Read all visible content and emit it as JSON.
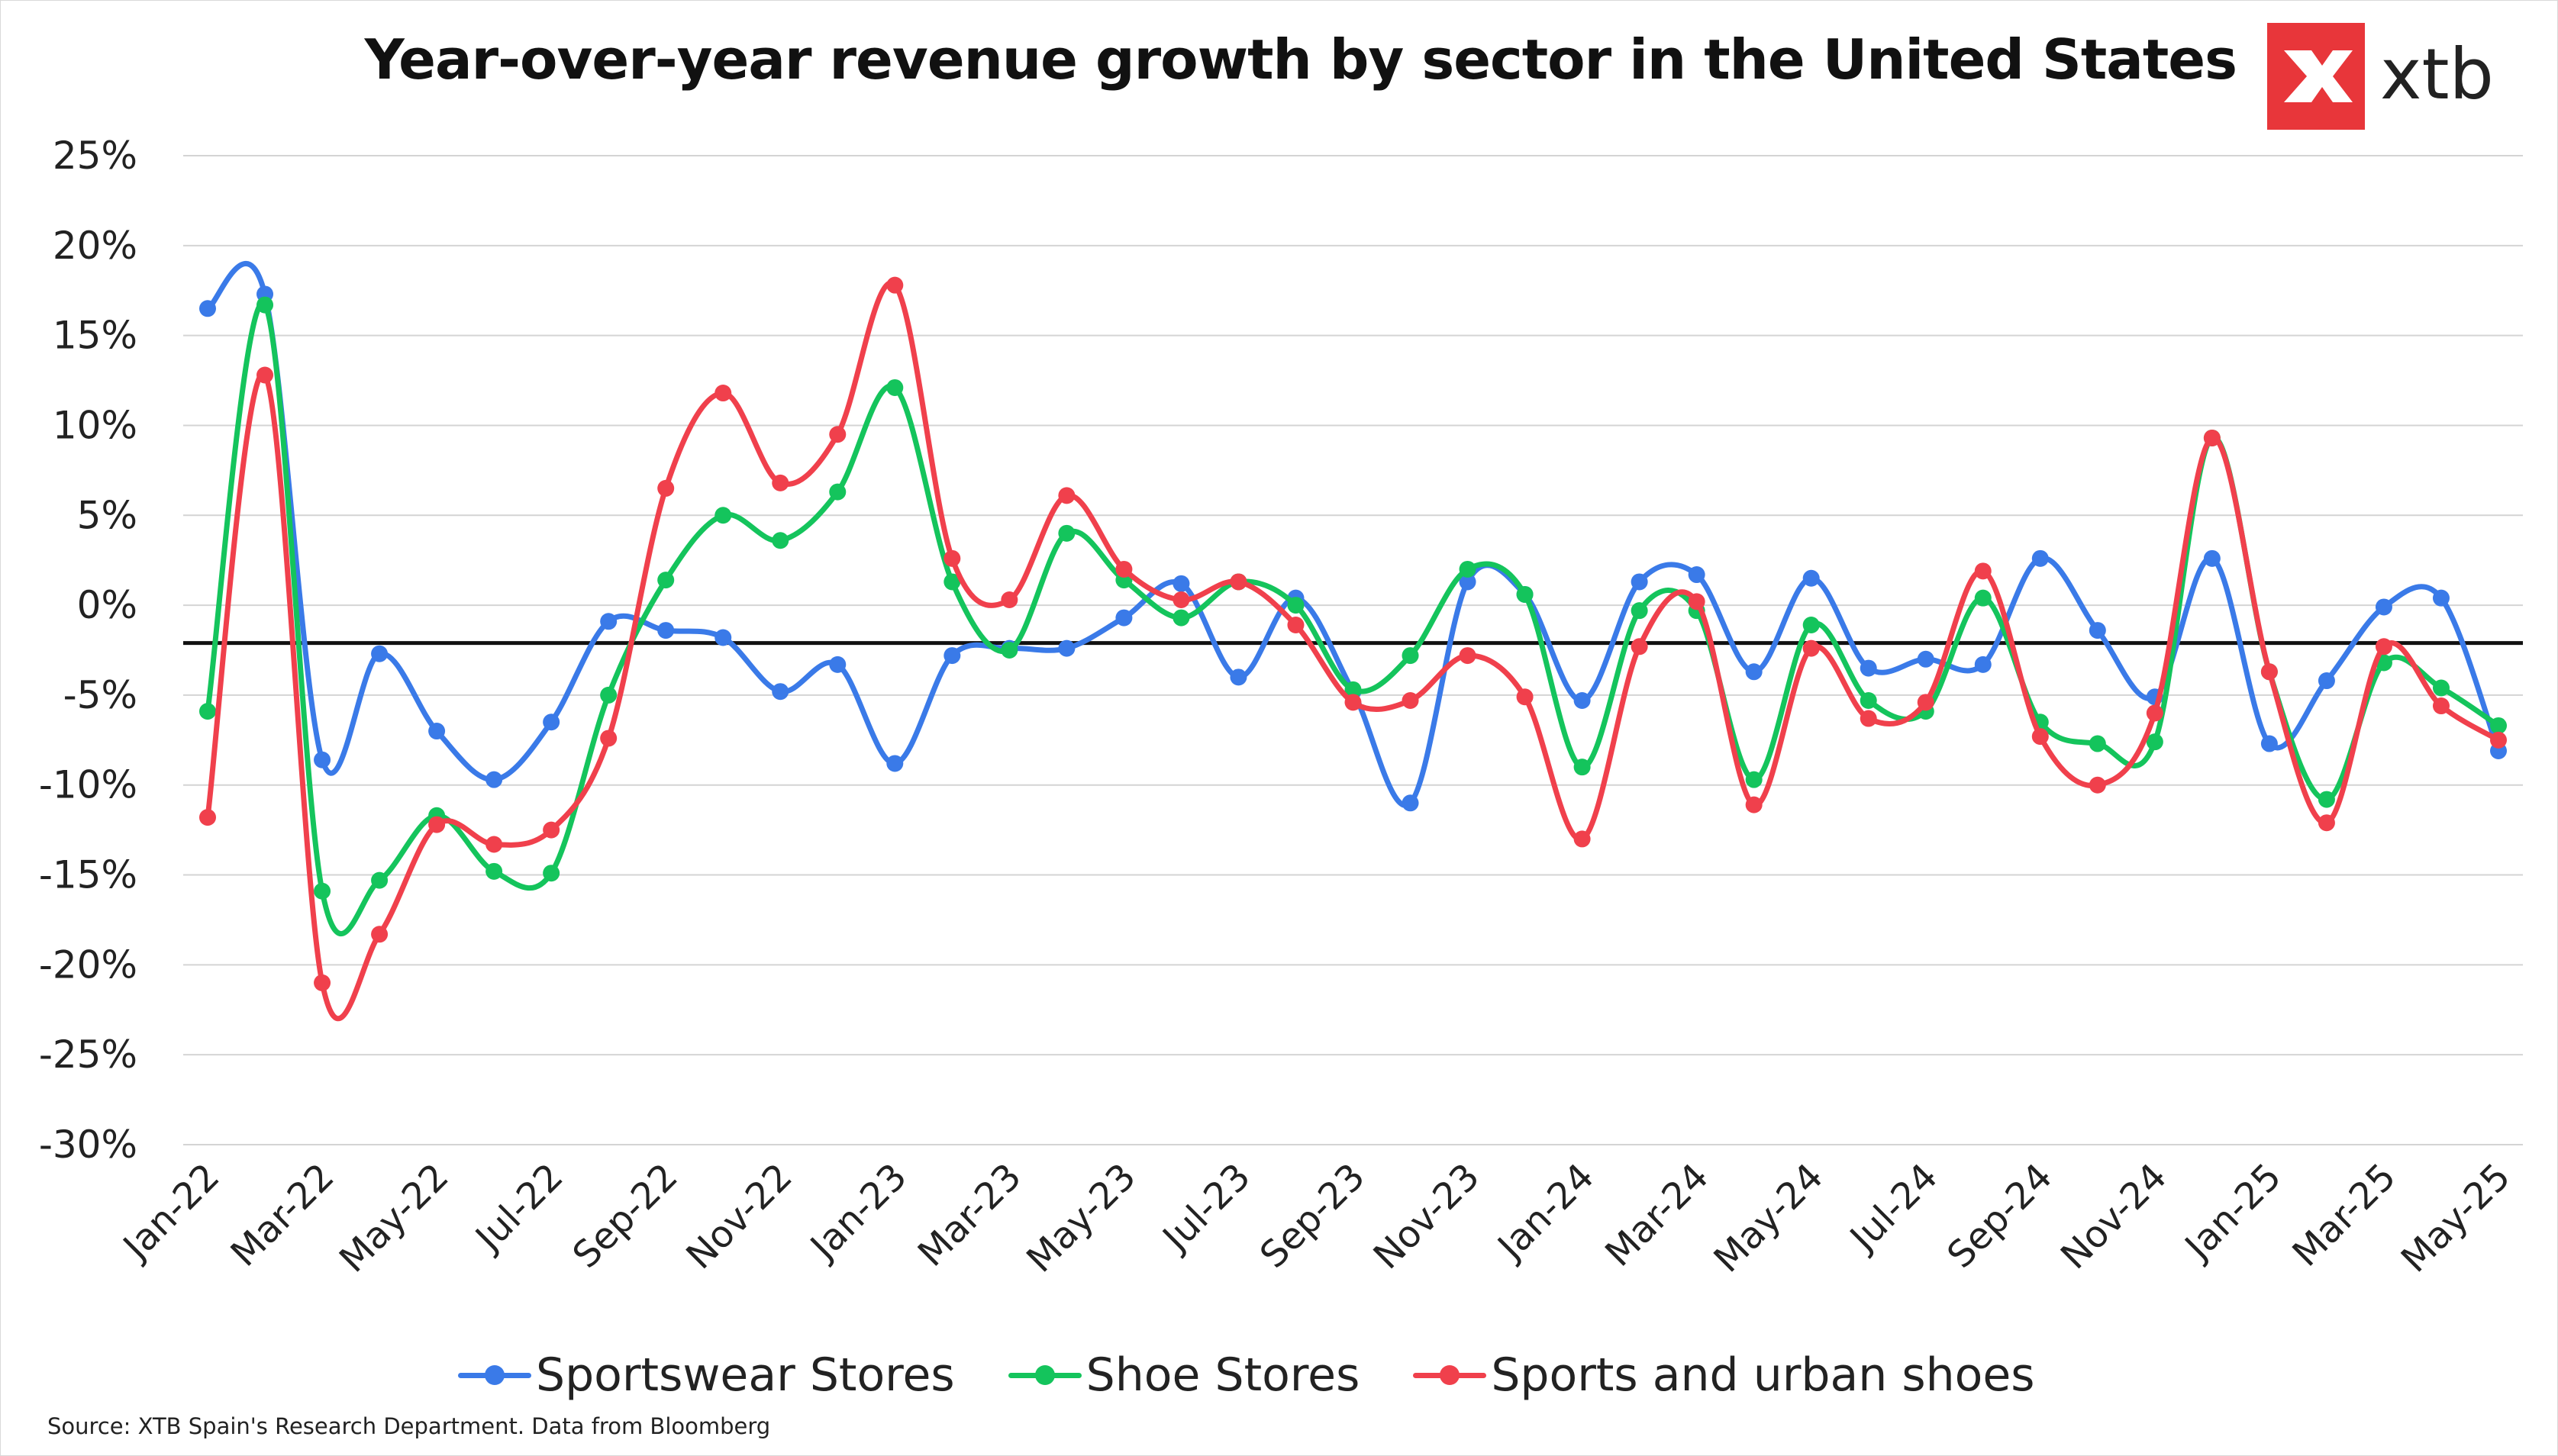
{
  "logo": {
    "text": "xtb"
  },
  "source_note": "Source: XTB Spain's Research Department. Data from Bloomberg",
  "chart_data": {
    "type": "line",
    "title": "Year-over-year revenue growth by sector in the United States",
    "xlabel": "",
    "ylabel": "",
    "ylim": [
      -30,
      25
    ],
    "ytick_step": 5,
    "ytick_labels": [
      "25%",
      "20%",
      "15%",
      "10%",
      "5%",
      "0%",
      "-5%",
      "-10%",
      "-15%",
      "-20%",
      "-25%",
      "-30%"
    ],
    "grid": true,
    "legend": "bottom",
    "x_tick_labels": [
      "Jan-22",
      "Mar-22",
      "May-22",
      "Jul-22",
      "Sep-22",
      "Nov-22",
      "Jan-23",
      "Mar-23",
      "May-23",
      "Jul-23",
      "Sep-23",
      "Nov-23",
      "Jan-24",
      "Mar-24",
      "May-24",
      "Jul-24",
      "Sep-24",
      "Nov-24",
      "Jan-25",
      "Mar-25",
      "May-25"
    ],
    "x": [
      "Jan-22",
      "Feb-22",
      "Mar-22",
      "Apr-22",
      "May-22",
      "Jun-22",
      "Jul-22",
      "Aug-22",
      "Sep-22",
      "Oct-22",
      "Nov-22",
      "Dec-22",
      "Jan-23",
      "Feb-23",
      "Mar-23",
      "Apr-23",
      "May-23",
      "Jun-23",
      "Jul-23",
      "Aug-23",
      "Sep-23",
      "Oct-23",
      "Nov-23",
      "Dec-23",
      "Jan-24",
      "Feb-24",
      "Mar-24",
      "Apr-24",
      "May-24",
      "Jun-24",
      "Jul-24",
      "Aug-24",
      "Sep-24",
      "Oct-24",
      "Nov-24",
      "Dec-24",
      "Jan-25",
      "Feb-25",
      "Mar-25",
      "Apr-25",
      "May-25"
    ],
    "reference_line": {
      "y": -2.1,
      "color": "#111111"
    },
    "series": [
      {
        "name": "Sportswear Stores",
        "color": "#3a7ae8",
        "values": [
          16.5,
          17.3,
          -8.6,
          -2.7,
          -7.0,
          -9.7,
          -6.5,
          -0.9,
          -1.4,
          -1.8,
          -4.8,
          -3.3,
          -8.8,
          -2.8,
          -2.4,
          -2.4,
          -0.7,
          1.2,
          -4.0,
          0.4,
          -4.8,
          -11.0,
          1.3,
          0.6,
          -5.3,
          1.3,
          1.7,
          -3.7,
          1.5,
          -3.5,
          -3.0,
          -3.3,
          2.6,
          -1.4,
          -5.1,
          2.6,
          -7.7,
          -4.2,
          -0.1,
          0.4,
          -8.1
        ]
      },
      {
        "name": "Shoe Stores",
        "color": "#14c45c",
        "values": [
          -5.9,
          16.7,
          -15.9,
          -15.3,
          -11.7,
          -14.8,
          -14.9,
          -5.0,
          1.4,
          5.0,
          3.6,
          6.3,
          12.1,
          1.3,
          -2.5,
          4.0,
          1.4,
          -0.7,
          1.3,
          0.0,
          -4.7,
          -2.8,
          2.0,
          0.6,
          -9.0,
          -0.3,
          -0.3,
          -9.7,
          -1.1,
          -5.3,
          -5.9,
          0.4,
          -6.5,
          -7.7,
          -7.6,
          9.3,
          -3.7,
          -10.8,
          -3.2,
          -4.6,
          -6.7
        ]
      },
      {
        "name": "Sports and urban shoes",
        "color": "#f0404c",
        "values": [
          -11.8,
          12.8,
          -21.0,
          -18.3,
          -12.2,
          -13.3,
          -12.5,
          -7.4,
          6.5,
          11.8,
          6.8,
          9.5,
          17.8,
          2.6,
          0.3,
          6.1,
          2.0,
          0.3,
          1.3,
          -1.1,
          -5.4,
          -5.3,
          -2.8,
          -5.1,
          -13.0,
          -2.3,
          0.2,
          -11.1,
          -2.4,
          -6.3,
          -5.4,
          1.9,
          -7.3,
          -10.0,
          -6.0,
          9.3,
          -3.7,
          -12.1,
          -2.3,
          -5.6,
          -7.5
        ]
      }
    ]
  }
}
